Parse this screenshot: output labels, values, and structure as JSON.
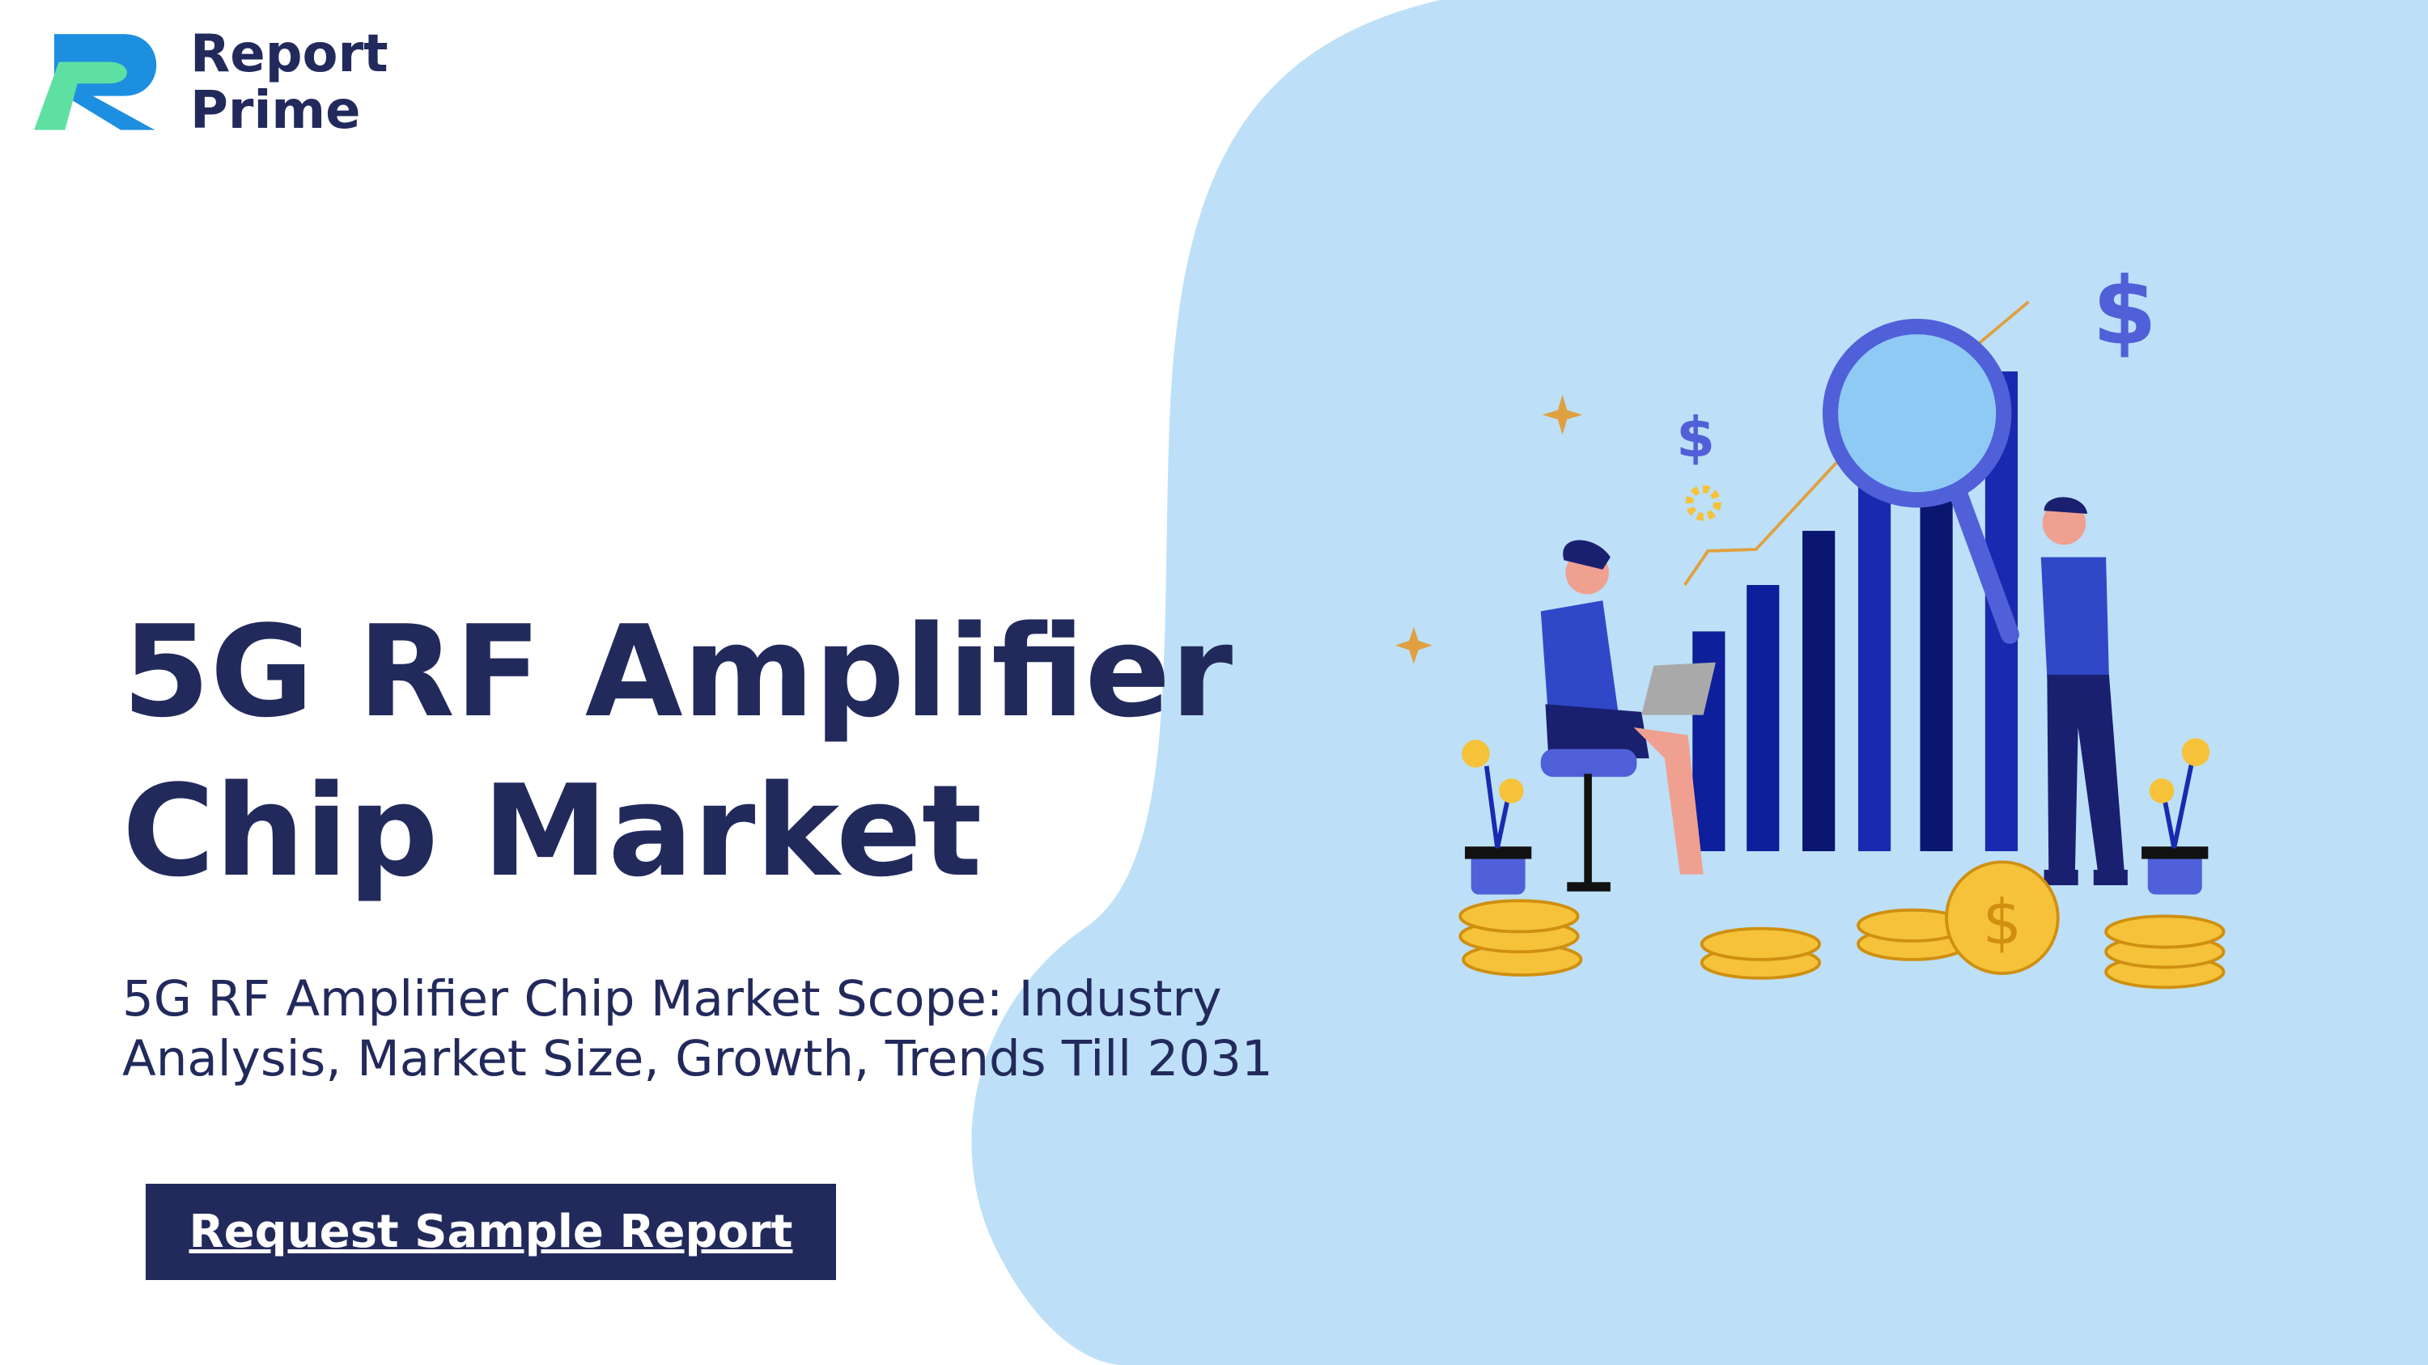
{
  "logo": {
    "line1": "Report",
    "line2": "Prime"
  },
  "hero": {
    "title": [
      "5G RF Amplifier",
      "Chip Market"
    ],
    "subtitle": "5G RF Amplifier Chip Market Scope: Industry Analysis, Market Size, Growth, Trends Till 2031",
    "button": "Request Sample Report"
  },
  "illustration": {
    "dollar_signs": [
      "$",
      "$",
      "$"
    ]
  }
}
